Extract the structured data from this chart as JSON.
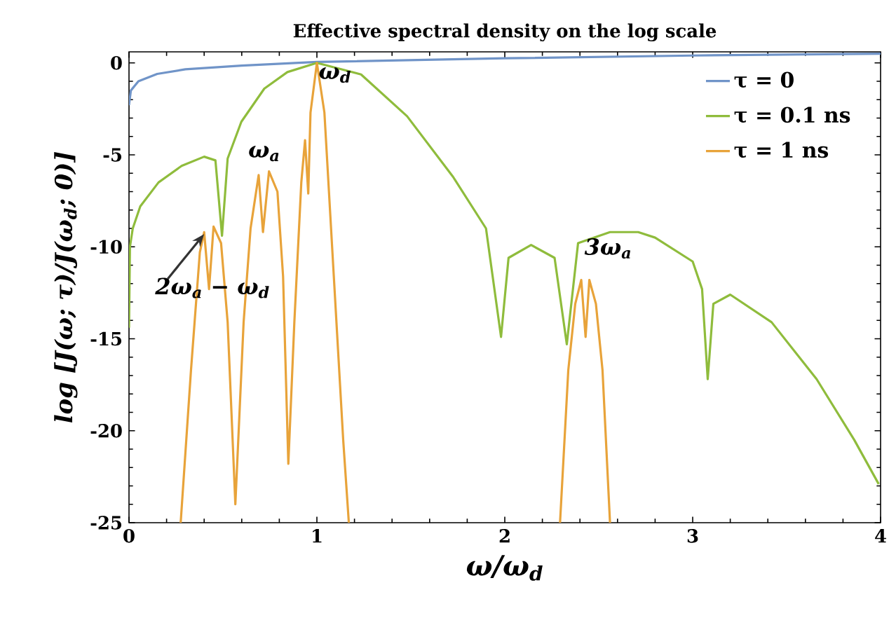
{
  "chart_data": {
    "type": "line",
    "title": "Effective spectral density on the log scale",
    "xlabel": "ω/ω$_{d}$",
    "ylabel": "log [J(ω; τ)/J(ω$_{d}$; 0)]",
    "xlim": [
      0,
      4
    ],
    "ylim": [
      -25,
      0.6
    ],
    "xticks": [
      0,
      1,
      2,
      3,
      4
    ],
    "yticks": [
      -25,
      -20,
      -15,
      -10,
      -5,
      0
    ],
    "grid": false,
    "legend": "top right",
    "line_style": "solid",
    "marker": "none",
    "series": [
      {
        "name": "τ = 0",
        "color": "#7094c8",
        "x": [
          0,
          0.01,
          0.05,
          0.15,
          0.3,
          0.6,
          1,
          1.5,
          2,
          3,
          4
        ],
        "values": [
          -2.3,
          -1.5,
          -1.0,
          -0.6,
          -0.35,
          -0.15,
          0.05,
          0.15,
          0.25,
          0.4,
          0.5
        ]
      },
      {
        "name": "τ = 0.1 ns",
        "color": "#8fbc3c",
        "x": [
          0,
          0.005,
          0.02,
          0.06,
          0.157,
          0.28,
          0.4,
          0.46,
          0.495,
          0.525,
          0.598,
          0.72,
          0.843,
          1.0,
          1.235,
          1.48,
          1.725,
          1.9,
          1.98,
          2.02,
          2.14,
          2.265,
          2.33,
          2.39,
          2.56,
          2.71,
          2.8,
          3.0,
          3.05,
          3.08,
          3.11,
          3.2,
          3.42,
          3.66,
          3.86,
          3.99
        ],
        "values": [
          -14.4,
          -10,
          -9,
          -7.8,
          -6.5,
          -5.6,
          -5.1,
          -5.3,
          -9.4,
          -5.2,
          -3.2,
          -1.4,
          -0.5,
          0,
          -0.63,
          -2.9,
          -6.2,
          -9.0,
          -14.9,
          -10.6,
          -9.9,
          -10.6,
          -15.3,
          -9.8,
          -9.2,
          -9.2,
          -9.5,
          -10.8,
          -12.3,
          -17.2,
          -13.1,
          -12.6,
          -14.1,
          -17.2,
          -20.5,
          -22.9
        ]
      },
      {
        "name": "τ = 1 ns",
        "color": "#e8a33a",
        "x": [
          0.275,
          0.33,
          0.377,
          0.4,
          0.426,
          0.45,
          0.49,
          0.525,
          0.566,
          0.61,
          0.647,
          0.69,
          0.713,
          0.745,
          0.79,
          0.82,
          0.848,
          0.88,
          0.917,
          0.937,
          0.954,
          0.966,
          1.0,
          1.04,
          1.09,
          1.14,
          1.17,
          null,
          2.294,
          2.338,
          2.375,
          2.407,
          2.43,
          2.45,
          2.485,
          2.52,
          2.56
        ],
        "values": [
          -25,
          -16.7,
          -10.3,
          -9.2,
          -12.3,
          -8.9,
          -9.8,
          -14.1,
          -24.0,
          -14.1,
          -9.0,
          -6.1,
          -9.2,
          -5.9,
          -7.0,
          -11.6,
          -21.8,
          -14.1,
          -6.5,
          -4.2,
          -7.1,
          -2.7,
          0,
          -2.7,
          -11.6,
          -20.5,
          -25,
          null,
          -25,
          -16.7,
          -13.1,
          -11.8,
          -14.9,
          -11.8,
          -13.1,
          -16.7,
          -25
        ]
      }
    ],
    "annotations": [
      {
        "text": "ω$_{d}$",
        "x": 1,
        "y": 0
      },
      {
        "text": "ω$_{a}$",
        "x": 0.72,
        "y": -5.9
      },
      {
        "text": "2ω$_{a}$ − ω$_{d}$",
        "x": 0.43,
        "y": -9.0
      },
      {
        "text": "3ω$_{a}$",
        "x": 2.43,
        "y": -11.8
      }
    ]
  }
}
